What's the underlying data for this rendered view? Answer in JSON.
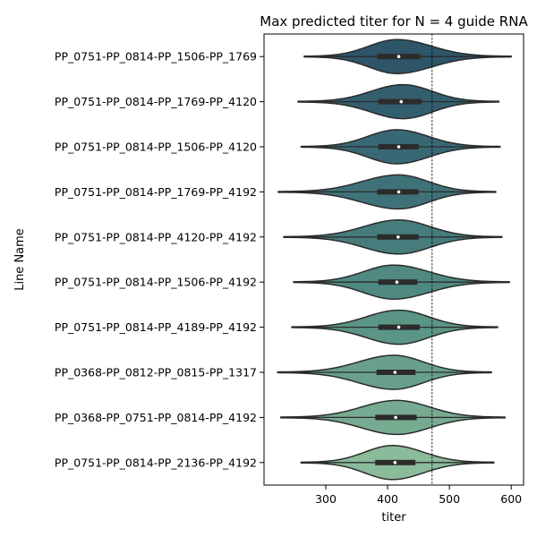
{
  "chart_data": {
    "type": "violin",
    "orientation": "horizontal",
    "title": "Max predicted titer for N = 4 guide RNA",
    "xlabel": "titer",
    "ylabel": "Line Name",
    "xlim": [
      200,
      620
    ],
    "xticks": [
      300,
      400,
      500,
      600
    ],
    "reference_line": {
      "x": 472,
      "style": "dashed"
    },
    "grid": false,
    "legend": "none",
    "categories": [
      "PP_0751-PP_0814-PP_1506-PP_1769",
      "PP_0751-PP_0814-PP_1769-PP_4120",
      "PP_0751-PP_0814-PP_1506-PP_4120",
      "PP_0751-PP_0814-PP_1769-PP_4192",
      "PP_0751-PP_0814-PP_4120-PP_4192",
      "PP_0751-PP_0814-PP_1506-PP_4192",
      "PP_0751-PP_0814-PP_4189-PP_4192",
      "PP_0368-PP_0812-PP_0815-PP_1317",
      "PP_0368-PP_0751-PP_0814-PP_4192",
      "PP_0751-PP_0814-PP_2136-PP_4192"
    ],
    "violins": [
      {
        "min": 265,
        "q1": 383,
        "median": 418,
        "q3": 453,
        "max": 600,
        "mode": 415,
        "colour": "#2f5568"
      },
      {
        "min": 255,
        "q1": 385,
        "median": 422,
        "q3": 455,
        "max": 580,
        "mode": 425,
        "colour": "#335e6f"
      },
      {
        "min": 260,
        "q1": 385,
        "median": 418,
        "q3": 450,
        "max": 582,
        "mode": 415,
        "colour": "#386873"
      },
      {
        "min": 223,
        "q1": 383,
        "median": 418,
        "q3": 450,
        "max": 575,
        "mode": 418,
        "colour": "#3f7278"
      },
      {
        "min": 232,
        "q1": 383,
        "median": 417,
        "q3": 450,
        "max": 585,
        "mode": 418,
        "colour": "#467d7c"
      },
      {
        "min": 248,
        "q1": 385,
        "median": 415,
        "q3": 448,
        "max": 597,
        "mode": 410,
        "colour": "#4f8981"
      },
      {
        "min": 245,
        "q1": 385,
        "median": 418,
        "q3": 452,
        "max": 578,
        "mode": 418,
        "colour": "#5b9585"
      },
      {
        "min": 222,
        "q1": 382,
        "median": 412,
        "q3": 445,
        "max": 568,
        "mode": 410,
        "colour": "#68a08b"
      },
      {
        "min": 227,
        "q1": 380,
        "median": 413,
        "q3": 447,
        "max": 590,
        "mode": 415,
        "colour": "#77ab91"
      },
      {
        "min": 260,
        "q1": 380,
        "median": 412,
        "q3": 445,
        "max": 572,
        "mode": 408,
        "colour": "#8abb9b"
      }
    ]
  }
}
